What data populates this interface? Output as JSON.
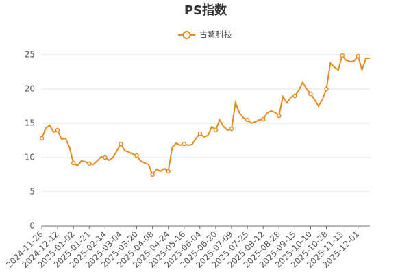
{
  "chart_data": {
    "type": "line",
    "title": "PS指数",
    "legend": "top",
    "grid": true,
    "categories": [
      "2024-11-26",
      null,
      null,
      null,
      "2024-12-12",
      null,
      null,
      null,
      "2025-01-02",
      null,
      null,
      null,
      "2025-01-21",
      null,
      null,
      null,
      "2025-02-14",
      null,
      null,
      null,
      "2025-03-04",
      null,
      null,
      null,
      "2025-03-20",
      null,
      null,
      null,
      "2025-04-08",
      null,
      null,
      null,
      "2025-04-24",
      null,
      null,
      null,
      "2025-05-16",
      null,
      null,
      null,
      "2025-06-04",
      null,
      null,
      null,
      "2025-06-20",
      null,
      null,
      null,
      "2025-07-09",
      null,
      null,
      null,
      "2025-07-25",
      null,
      null,
      null,
      "2025-08-12",
      null,
      null,
      null,
      "2025-08-28",
      null,
      null,
      null,
      "2025-09-15",
      null,
      null,
      null,
      "2025-10-10",
      null,
      null,
      null,
      "2025-10-28",
      null,
      null,
      null,
      "2025-11-13",
      null,
      null,
      null,
      "2025-12-01",
      null,
      null,
      null
    ],
    "series": [
      {
        "name": "古鳌科技",
        "color": "#e8891c",
        "values": [
          12.8,
          14.3,
          14.7,
          13.7,
          14.0,
          12.7,
          12.8,
          11.5,
          9.2,
          8.8,
          9.5,
          9.4,
          9.1,
          9.0,
          9.5,
          10.1,
          10.0,
          9.6,
          10.0,
          11.0,
          12.0,
          11.0,
          10.8,
          10.5,
          10.3,
          9.5,
          9.2,
          9.0,
          7.5,
          8.3,
          8.0,
          8.4,
          8.0,
          11.5,
          12.1,
          11.8,
          12.0,
          11.8,
          11.9,
          12.8,
          13.5,
          13.0,
          13.2,
          14.5,
          14.0,
          15.5,
          14.5,
          14.0,
          14.2,
          18.0,
          16.5,
          15.8,
          15.5,
          15.0,
          15.2,
          15.5,
          15.6,
          16.5,
          16.8,
          16.6,
          16.1,
          18.9,
          18.0,
          18.8,
          19.0,
          19.8,
          21.0,
          20.0,
          19.3,
          18.5,
          17.5,
          18.5,
          20.0,
          23.8,
          23.2,
          22.8,
          24.9,
          24.2,
          24.0,
          24.1,
          24.8,
          22.8,
          24.5,
          24.5
        ]
      }
    ],
    "ylim": [
      0,
      25
    ],
    "yticks": [
      0,
      5,
      10,
      15,
      20,
      25
    ]
  }
}
